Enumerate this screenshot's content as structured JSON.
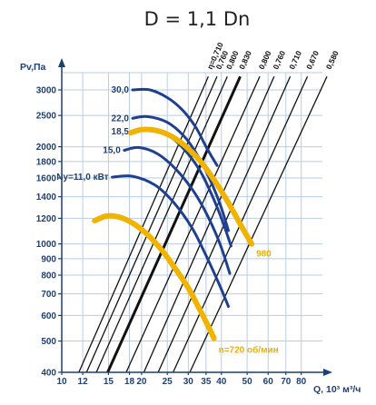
{
  "title": "D = 1,1 Dn",
  "chart_data": {
    "type": "line",
    "xlabel": "Q, 10³ м³/ч",
    "ylabel": "Pv,Па",
    "x_scale": "log",
    "y_scale": "log",
    "xlim": [
      10,
      100
    ],
    "ylim": [
      400,
      3000
    ],
    "x_ticks": [
      "10",
      "12",
      "15",
      "18",
      "20",
      "25",
      "30",
      "35",
      "40",
      "50",
      "60",
      "70",
      "80"
    ],
    "y_ticks": [
      "400",
      "500",
      "600",
      "700",
      "800",
      "900",
      "1000",
      "1200",
      "1400",
      "1600",
      "1800",
      "2000",
      "2500",
      "3000"
    ],
    "grid": true,
    "colors": {
      "power": "#1f3f8f",
      "speed": "#f0b400",
      "efficiency": "#111111",
      "grid": "#b9cce6",
      "axis": "#1f3f73"
    },
    "efficiency_lines": [
      {
        "label": "η=0,710",
        "x": [
          11.6,
          35.7
        ],
        "y": [
          400,
          3300
        ]
      },
      {
        "label": "0,760",
        "x": [
          12.4,
          38.5
        ],
        "y": [
          400,
          3300
        ]
      },
      {
        "label": "0,800",
        "x": [
          13.5,
          42.1
        ],
        "y": [
          400,
          3300
        ]
      },
      {
        "label": "0,830",
        "x": [
          14.9,
          47.1
        ],
        "y": [
          400,
          3300
        ],
        "bold": true
      },
      {
        "label": "0,800",
        "x": [
          17.5,
          55.8
        ],
        "y": [
          400,
          3300
        ]
      },
      {
        "label": "0,760",
        "x": [
          20.4,
          63.2
        ],
        "y": [
          400,
          3300
        ]
      },
      {
        "label": "0,710",
        "x": [
          23.1,
          72.7
        ],
        "y": [
          400,
          3300
        ]
      },
      {
        "label": "0,670",
        "x": [
          26.3,
          84.4
        ],
        "y": [
          400,
          3300
        ]
      },
      {
        "label": "0,580",
        "x": [
          30.4,
          100
        ],
        "y": [
          400,
          3300
        ]
      }
    ],
    "power_curves": [
      {
        "label": "30,0",
        "x": [
          18.5,
          21.5,
          25,
          28.5,
          32,
          35,
          38.5
        ],
        "y": [
          3000,
          3000,
          2840,
          2600,
          2300,
          2000,
          1750
        ]
      },
      {
        "label": "22,0",
        "x": [
          18.5,
          21,
          25,
          29,
          32.5,
          36,
          39.5,
          42.5
        ],
        "y": [
          2450,
          2480,
          2380,
          2150,
          1880,
          1600,
          1330,
          1100
        ]
      },
      {
        "label": "18,5",
        "x": [
          18.5,
          21,
          25,
          29,
          33,
          36.5,
          40,
          43.5
        ],
        "y": [
          2230,
          2270,
          2180,
          1960,
          1700,
          1440,
          1200,
          985
        ]
      },
      {
        "label": "15,0",
        "x": [
          17.2,
          19.5,
          23,
          27,
          31.5,
          35.5,
          39.5,
          43
        ],
        "y": [
          1950,
          1990,
          1900,
          1700,
          1450,
          1220,
          1000,
          810
        ]
      },
      {
        "label": "Ny=11,0 кВт",
        "x": [
          15.5,
          18.5,
          22.5,
          26.5,
          31,
          35,
          39.5,
          42.5
        ],
        "y": [
          1610,
          1620,
          1520,
          1340,
          1120,
          920,
          740,
          640
        ]
      }
    ],
    "speed_curves": [
      {
        "label": "980",
        "x": [
          18.2,
          20,
          22.5,
          25.5,
          29,
          33,
          37.5,
          42.5,
          48,
          52
        ],
        "y": [
          2210,
          2260,
          2250,
          2170,
          2020,
          1820,
          1580,
          1340,
          1120,
          1000
        ]
      },
      {
        "label": "n=720 об/мин",
        "x": [
          13.3,
          14.8,
          16.5,
          18.5,
          21,
          24,
          27,
          30,
          33,
          35.5,
          37.5
        ],
        "y": [
          1180,
          1220,
          1210,
          1160,
          1070,
          950,
          830,
          730,
          630,
          560,
          510
        ]
      }
    ]
  }
}
